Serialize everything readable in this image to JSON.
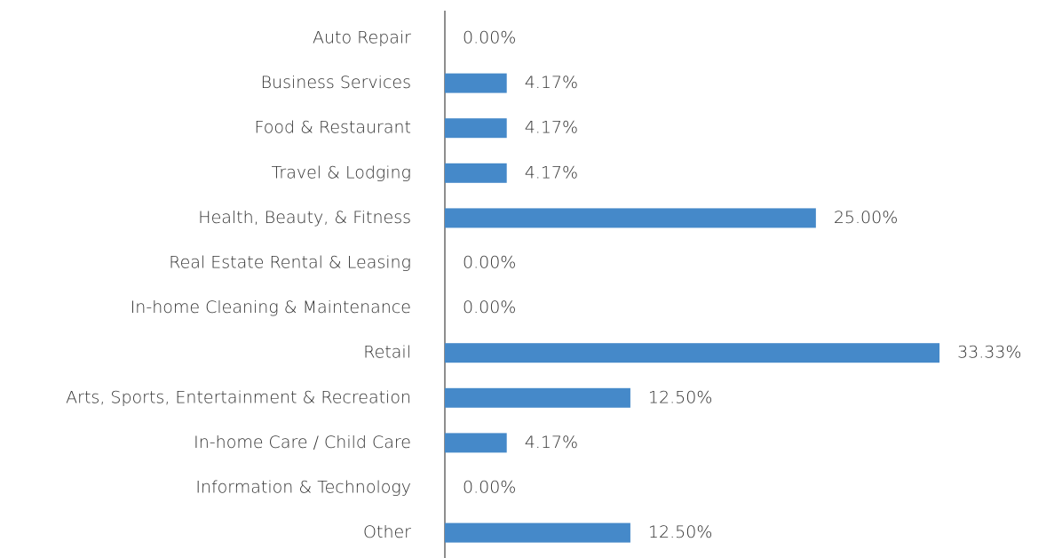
{
  "chart_data": {
    "type": "barh",
    "categories": [
      "Auto Repair",
      "Business Services",
      "Food & Restaurant",
      "Travel & Lodging",
      "Health, Beauty, & Fitness",
      "Real Estate Rental & Leasing",
      "In-home Cleaning & Maintenance",
      "Retail",
      "Arts, Sports, Entertainment & Recreation",
      "In-home Care / Child Care",
      "Information & Technology",
      "Other"
    ],
    "values": [
      0,
      4.17,
      4.17,
      4.17,
      25,
      0,
      0,
      33.33,
      12.5,
      4.17,
      0,
      12.5
    ],
    "value_labels": [
      "0.00%",
      "4.17%",
      "4.17%",
      "4.17%",
      "25.00%",
      "0.00%",
      "0.00%",
      "33.33%",
      "12.50%",
      "4.17%",
      "0.00%",
      "12.50%"
    ],
    "color": "#4589c9",
    "xlim": [
      0,
      35
    ]
  }
}
